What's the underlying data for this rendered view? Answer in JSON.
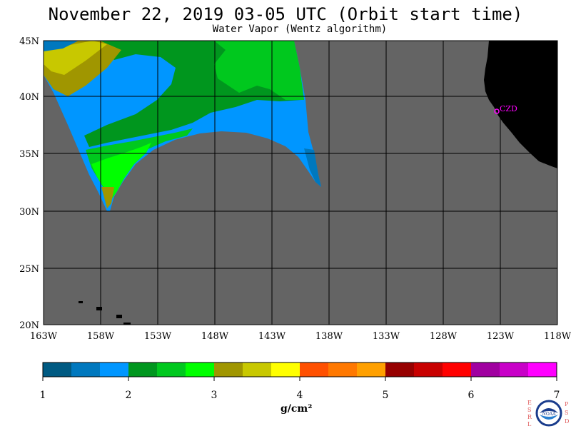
{
  "title": "November 22, 2019  03-05 UTC  (Orbit start time)",
  "subtitle": "Water Vapor (Wentz algorithm)",
  "map": {
    "lat_labels": [
      "45N",
      "40N",
      "35N",
      "30N",
      "25N",
      "20N"
    ],
    "lon_labels": [
      "163W",
      "158W",
      "153W",
      "148W",
      "143W",
      "138W",
      "133W",
      "128W",
      "123W",
      "118W"
    ],
    "marker_label": "CZD",
    "colors": {
      "no_data": "#646464",
      "land": "#000000",
      "grid": "#000000",
      "marker": "#ff00ff"
    }
  },
  "colorbar": {
    "tick_labels": [
      "1",
      "2",
      "3",
      "4",
      "5",
      "6",
      "7"
    ],
    "unit": "g/cm²",
    "colors": [
      "#005a82",
      "#0078be",
      "#0096ff",
      "#00961e",
      "#00c81e",
      "#00ff00",
      "#a09600",
      "#c8c800",
      "#ffff00",
      "#ff5000",
      "#ff7800",
      "#ffa000",
      "#960000",
      "#c80000",
      "#ff0000",
      "#a000a0",
      "#c800c8",
      "#ff00ff"
    ]
  },
  "logo": {
    "left_letters": "ESRL",
    "right_letters": "PSD",
    "center_text": "NOAA"
  }
}
